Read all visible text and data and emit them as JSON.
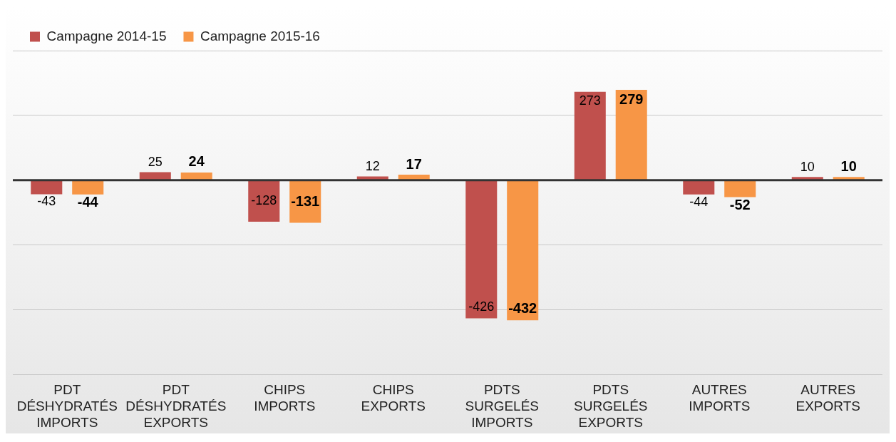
{
  "chart_data": {
    "type": "bar",
    "categories": [
      "PDT DÉSHYDRATÉS IMPORTS",
      "PDT DÉSHYDRATÉS EXPORTS",
      "CHIPS IMPORTS",
      "CHIPS EXPORTS",
      "PDTS SURGELÉS IMPORTS",
      "PDTS SURGELÉS EXPORTS",
      "AUTRES IMPORTS",
      "AUTRES EXPORTS"
    ],
    "series": [
      {
        "name": "Campagne 2014-15",
        "color": "#c0504d",
        "values": [
          -43,
          25,
          -128,
          12,
          -426,
          273,
          -44,
          10
        ]
      },
      {
        "name": "Campagne 2015-16",
        "color": "#f79646",
        "values": [
          -44,
          24,
          -131,
          17,
          -432,
          279,
          -52,
          10
        ]
      }
    ],
    "ylim": [
      -600,
      400
    ],
    "ref_lines": [
      {
        "axis": "y",
        "value": 0,
        "color": "#333333"
      }
    ],
    "grid": "y",
    "tick_labels": "x",
    "legend": "top left",
    "data_labels": true
  }
}
